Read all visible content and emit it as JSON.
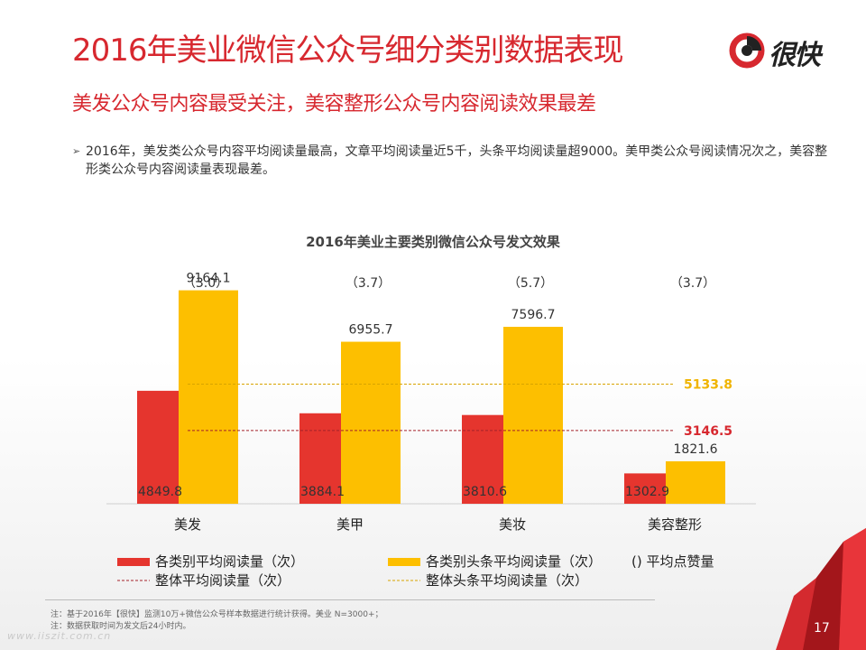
{
  "slide": {
    "title": "2016年美业微信公众号细分类别数据表现",
    "subtitle": "美发公众号内容最受关注，美容整形公众号内容阅读效果最差",
    "bullet": "2016年，美发类公众号内容平均阅读量最高，文章平均阅读量近5千，头条平均阅读量超9000。美甲类公众号阅读情况次之，美容整形类公众号内容阅读量表现最差。",
    "logo_text": "很快",
    "footnotes": [
      "注：基于2016年【很快】监测10万+微信公众号样本数据进行统计获得。美业 N=3000+；",
      "注：数据获取时间为发文后24小时内。"
    ],
    "watermark": "www.iiszit.com.cn",
    "page_number": "17"
  },
  "colors": {
    "accent": "#d7282f",
    "series_red": "#e5352e",
    "series_yellow": "#fdbf00",
    "avg_red_label": "#d7282f",
    "avg_yellow_label": "#f0b400"
  },
  "chart_data": {
    "type": "bar",
    "title": "2016年美业主要类别微信公众号发文效果",
    "categories": [
      "美发",
      "美甲",
      "美妆",
      "美容整形"
    ],
    "series": [
      {
        "name": "各类别平均阅读量（次）",
        "values": [
          4849.8,
          3884.1,
          3810.6,
          1302.9
        ]
      },
      {
        "name": "各类别头条平均阅读量（次）",
        "values": [
          9164.1,
          6955.7,
          7596.7,
          1821.6
        ]
      }
    ],
    "likes": {
      "name": "() 平均点赞量",
      "values": [
        "（3.0）",
        "（3.7）",
        "（5.7）",
        "（3.7）"
      ]
    },
    "reference_lines": [
      {
        "name": "整体平均阅读量（次）",
        "value": 3146.5
      },
      {
        "name": "整体头条平均阅读量（次）",
        "value": 5133.8
      }
    ],
    "ylim": [
      0,
      10000
    ],
    "legend_position": "bottom",
    "grid": false
  }
}
